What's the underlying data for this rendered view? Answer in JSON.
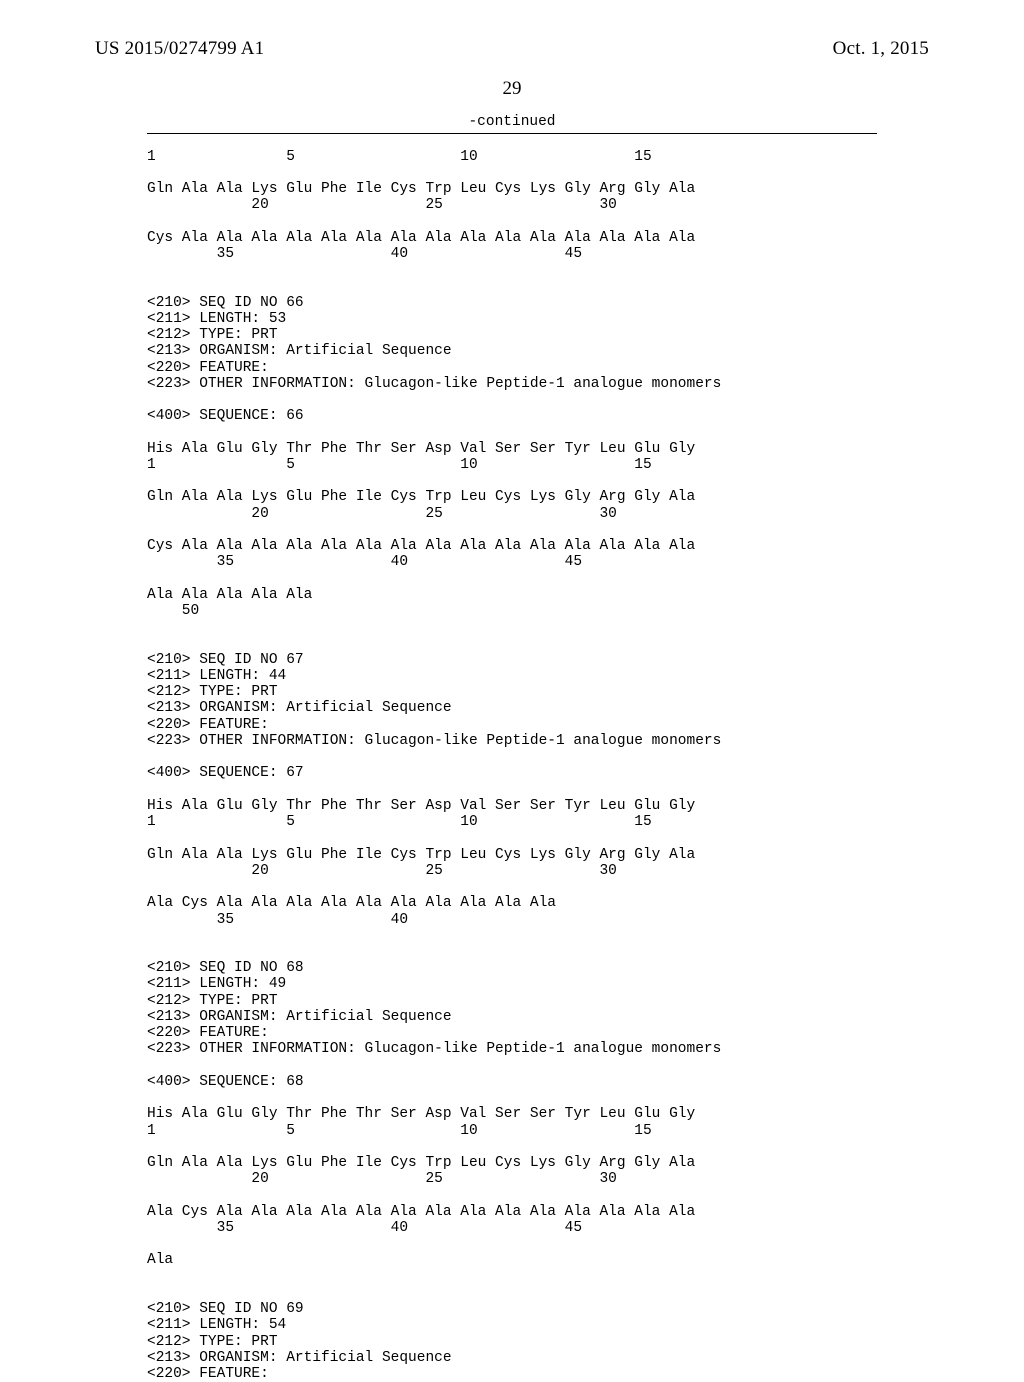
{
  "page": {
    "pub_number": "US 2015/0274799 A1",
    "pub_date": "Oct. 1, 2015",
    "page_number": "29",
    "continued_label": "-continued"
  },
  "sequence_text": "1               5                   10                  15\n\nGln Ala Ala Lys Glu Phe Ile Cys Trp Leu Cys Lys Gly Arg Gly Ala\n            20                  25                  30\n\nCys Ala Ala Ala Ala Ala Ala Ala Ala Ala Ala Ala Ala Ala Ala Ala\n        35                  40                  45\n\n\n<210> SEQ ID NO 66\n<211> LENGTH: 53\n<212> TYPE: PRT\n<213> ORGANISM: Artificial Sequence\n<220> FEATURE:\n<223> OTHER INFORMATION: Glucagon-like Peptide-1 analogue monomers\n\n<400> SEQUENCE: 66\n\nHis Ala Glu Gly Thr Phe Thr Ser Asp Val Ser Ser Tyr Leu Glu Gly\n1               5                   10                  15\n\nGln Ala Ala Lys Glu Phe Ile Cys Trp Leu Cys Lys Gly Arg Gly Ala\n            20                  25                  30\n\nCys Ala Ala Ala Ala Ala Ala Ala Ala Ala Ala Ala Ala Ala Ala Ala\n        35                  40                  45\n\nAla Ala Ala Ala Ala\n    50\n\n\n<210> SEQ ID NO 67\n<211> LENGTH: 44\n<212> TYPE: PRT\n<213> ORGANISM: Artificial Sequence\n<220> FEATURE:\n<223> OTHER INFORMATION: Glucagon-like Peptide-1 analogue monomers\n\n<400> SEQUENCE: 67\n\nHis Ala Glu Gly Thr Phe Thr Ser Asp Val Ser Ser Tyr Leu Glu Gly\n1               5                   10                  15\n\nGln Ala Ala Lys Glu Phe Ile Cys Trp Leu Cys Lys Gly Arg Gly Ala\n            20                  25                  30\n\nAla Cys Ala Ala Ala Ala Ala Ala Ala Ala Ala Ala\n        35                  40\n\n\n<210> SEQ ID NO 68\n<211> LENGTH: 49\n<212> TYPE: PRT\n<213> ORGANISM: Artificial Sequence\n<220> FEATURE:\n<223> OTHER INFORMATION: Glucagon-like Peptide-1 analogue monomers\n\n<400> SEQUENCE: 68\n\nHis Ala Glu Gly Thr Phe Thr Ser Asp Val Ser Ser Tyr Leu Glu Gly\n1               5                   10                  15\n\nGln Ala Ala Lys Glu Phe Ile Cys Trp Leu Cys Lys Gly Arg Gly Ala\n            20                  25                  30\n\nAla Cys Ala Ala Ala Ala Ala Ala Ala Ala Ala Ala Ala Ala Ala Ala\n        35                  40                  45\n\nAla\n\n\n<210> SEQ ID NO 69\n<211> LENGTH: 54\n<212> TYPE: PRT\n<213> ORGANISM: Artificial Sequence\n<220> FEATURE:"
}
